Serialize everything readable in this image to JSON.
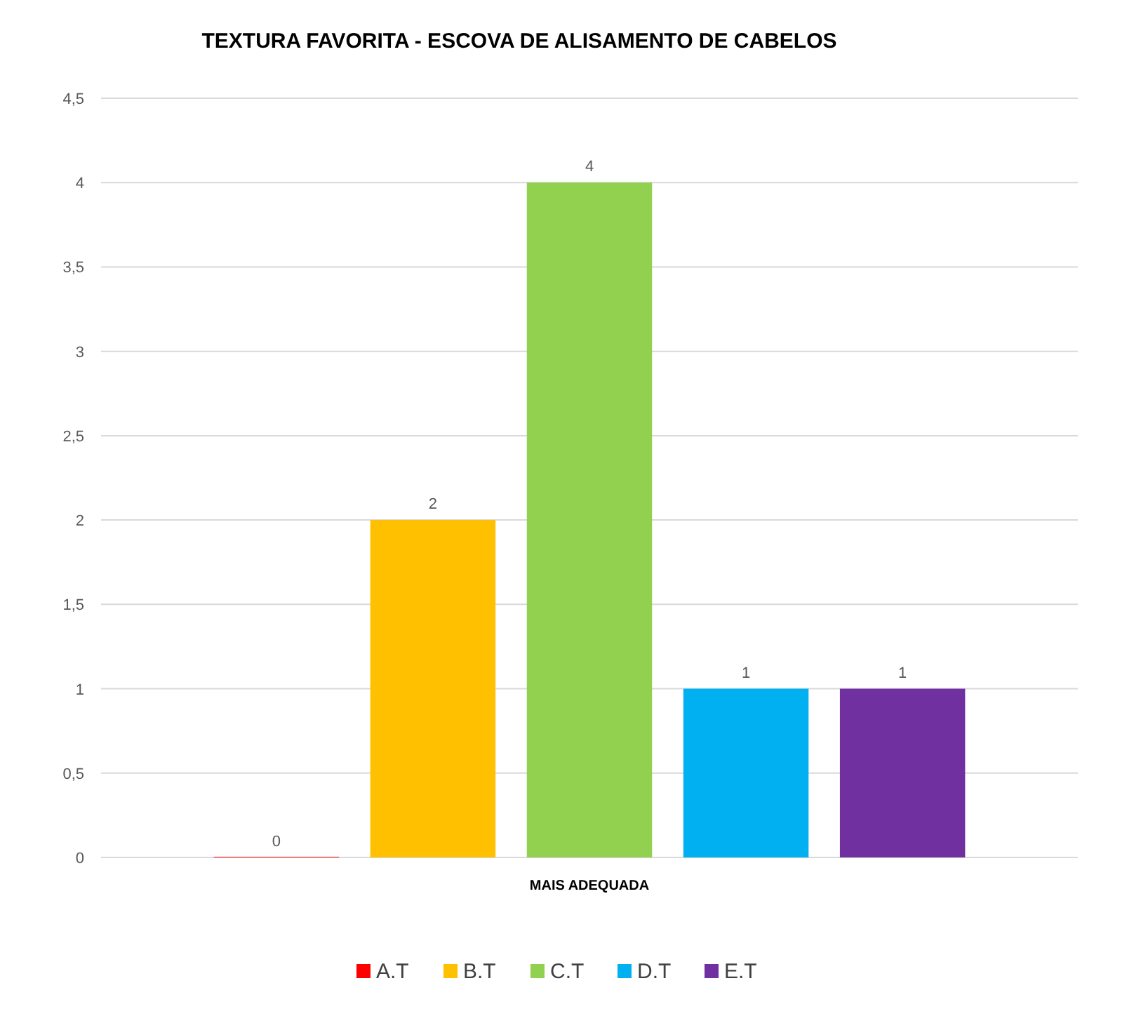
{
  "chart_data": {
    "type": "bar",
    "title": "TEXTURA FAVORITA - ESCOVA DE ALISAMENTO DE CABELOS",
    "categories": [
      "MAIS ADEQUADA"
    ],
    "series": [
      {
        "name": "A.T",
        "color": "#ff0000",
        "values": [
          0
        ]
      },
      {
        "name": "B.T",
        "color": "#ffc000",
        "values": [
          2
        ]
      },
      {
        "name": "C.T",
        "color": "#92d050",
        "values": [
          4
        ]
      },
      {
        "name": "D.T",
        "color": "#00b0f0",
        "values": [
          1
        ]
      },
      {
        "name": "E.T",
        "color": "#7030a0",
        "values": [
          1
        ]
      }
    ],
    "ylim": [
      0,
      4.5
    ],
    "yticks": [
      0,
      {
        "value": 0.5,
        "label": "0,5"
      },
      1,
      {
        "value": 1.5,
        "label": "1,5"
      },
      2,
      {
        "value": 2.5,
        "label": "2,5"
      },
      3,
      {
        "value": 3.5,
        "label": "3,5"
      },
      4,
      {
        "value": 4.5,
        "label": "4,5"
      }
    ],
    "grid": "y",
    "data_labels": true,
    "legend": "bottom"
  }
}
